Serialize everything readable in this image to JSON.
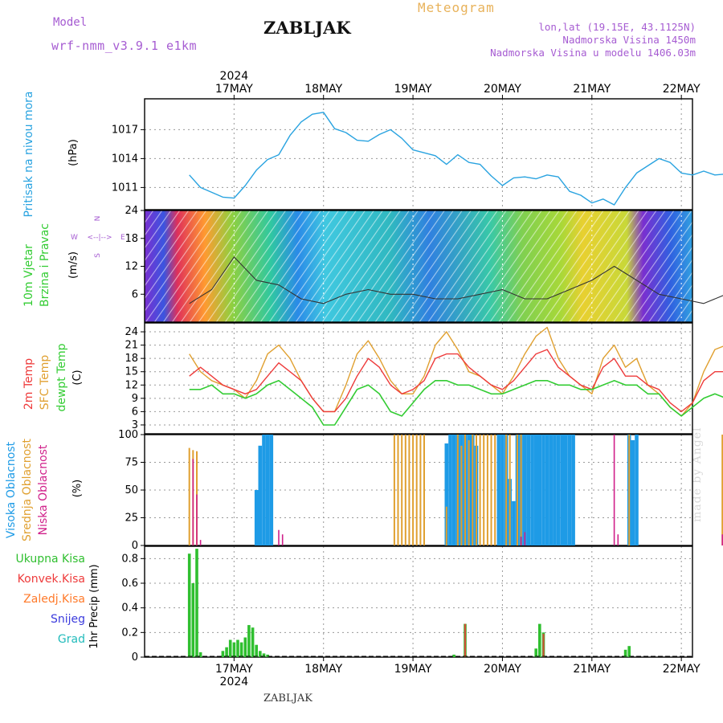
{
  "header": {
    "title": "ZABLJAK",
    "model_label": "Model",
    "model_name": "wrf-nmm_v3.9.1  e1km",
    "meteogram_label": "Meteogram",
    "lonlat": "lon,lat (19.15E, 43.1125N)",
    "elevation": "Nadmorska Visina 1450m",
    "model_elevation": "Nadmorska Visina u modelu 1406.03m"
  },
  "footer": {
    "station": "ZABLJAK",
    "credit": "made by Angel"
  },
  "colors": {
    "pressure": "#29a3e0",
    "temp": "#ee3b3b",
    "sfc_temp": "#e0a030",
    "dewpt": "#33cc33",
    "high_cloud": "#1e9be6",
    "mid_cloud": "#e0a030",
    "low_cloud": "#d0208a",
    "total_precip": "#2fbf2f",
    "conv_precip": "#ee3b3b",
    "frz_precip": "#ff7a2a",
    "snow": "#3b3bdd",
    "hail": "#22bbbb",
    "wind_speed": "#333333",
    "wind_gust": "#ee6666"
  },
  "axis": {
    "year": "2024",
    "days": [
      "17MAY",
      "18MAY",
      "19MAY",
      "20MAY",
      "21MAY",
      "22MAY"
    ]
  },
  "legends": {
    "pressure": [
      "Pritisak na nivou mora"
    ],
    "pressure_unit": "(hPa)",
    "wind": [
      "10m Vjetar",
      "Brzina i Pravac"
    ],
    "wind_unit": "(m/s)",
    "wind_compass": {
      "w": "W",
      "e": "E",
      "n": "N",
      "s": "S"
    },
    "temp": [
      "2m Temp",
      "SFC Temp",
      "dewpt Temp"
    ],
    "temp_unit": "(C)",
    "cloud": [
      "Visoka Oblacnost",
      "Srednja Oblacnost",
      "Niska Oblacnost"
    ],
    "cloud_unit": "(%)",
    "precip": [
      "Ukupna Kisa",
      "Konvek.Kisa",
      "Zaledj.Kisa",
      "Snijeg",
      "Grad"
    ],
    "precip_unit": "1hr Precip (mm)"
  },
  "chart_data": [
    {
      "type": "line",
      "title": "",
      "ylabel": "(hPa)",
      "ylim": [
        1008.7,
        1020.2
      ],
      "yticks": [
        1011,
        1014,
        1017
      ],
      "x_unit": "hours since 16MAY 12UTC",
      "series": [
        {
          "name": "Pritisak na nivou mora",
          "x": [
            0,
            3,
            6,
            9,
            12,
            15,
            18,
            21,
            24,
            27,
            30,
            33,
            36,
            39,
            42,
            45,
            48,
            51,
            54,
            57,
            60,
            63,
            66,
            69,
            72,
            75,
            78,
            81,
            84,
            87,
            90,
            93,
            96,
            99,
            102,
            105,
            108,
            111,
            114,
            117,
            120,
            126,
            129,
            132,
            135,
            138,
            141,
            144,
            147
          ],
          "values": [
            1012.3,
            1011.0,
            1010.5,
            1010.0,
            1009.9,
            1011.2,
            1012.8,
            1013.9,
            1014.4,
            1016.4,
            1017.8,
            1018.6,
            1018.8,
            1017.1,
            1016.7,
            1015.9,
            1015.8,
            1016.5,
            1017.0,
            1016.1,
            1014.9,
            1014.6,
            1014.3,
            1013.4,
            1014.4,
            1013.6,
            1013.4,
            1012.2,
            1011.2,
            1012.0,
            1012.1,
            1011.9,
            1012.3,
            1012.1,
            1010.6,
            1010.2,
            1009.4,
            1009.8,
            1009.2,
            1011.0,
            1012.5,
            1014.0,
            1013.6,
            1012.5,
            1012.3,
            1012.7,
            1012.3,
            1012.4,
            1012.3
          ]
        }
      ]
    },
    {
      "type": "line",
      "title": "",
      "ylabel": "(m/s)",
      "ylim": [
        0,
        24
      ],
      "yticks": [
        6,
        12,
        18,
        24
      ],
      "series": [
        {
          "name": "10m Vjetar",
          "x": [
            0,
            6,
            12,
            18,
            24,
            30,
            36,
            42,
            48,
            54,
            60,
            66,
            72,
            78,
            84,
            90,
            96,
            102,
            108,
            114,
            120,
            126,
            132,
            138,
            144,
            147
          ],
          "values": [
            4,
            7,
            14,
            9,
            8,
            5,
            4,
            6,
            7,
            6,
            6,
            5,
            5,
            6,
            7,
            5,
            5,
            7,
            9,
            12,
            9,
            6,
            5,
            4,
            6,
            7
          ]
        }
      ]
    },
    {
      "type": "line",
      "title": "",
      "ylabel": "(C)",
      "ylim": [
        1,
        26
      ],
      "yticks": [
        3,
        6,
        9,
        12,
        15,
        18,
        21,
        24
      ],
      "series": [
        {
          "name": "2m Temp",
          "x": [
            0,
            3,
            6,
            9,
            12,
            15,
            18,
            21,
            24,
            27,
            30,
            33,
            36,
            39,
            42,
            45,
            48,
            51,
            54,
            57,
            60,
            63,
            66,
            69,
            72,
            75,
            78,
            81,
            84,
            87,
            90,
            93,
            96,
            99,
            102,
            105,
            108,
            111,
            114,
            117,
            120,
            123,
            126,
            129,
            132,
            135,
            138,
            141,
            144,
            147
          ],
          "values": [
            14,
            16,
            14,
            12,
            11,
            10,
            11,
            14,
            17,
            15,
            13,
            9,
            6,
            6,
            9,
            14,
            18,
            16,
            12,
            10,
            11,
            13,
            18,
            19,
            19,
            16,
            14,
            12,
            11,
            13,
            16,
            19,
            20,
            16,
            14,
            12,
            11,
            16,
            18,
            14,
            14,
            12,
            11,
            8,
            6,
            8,
            13,
            15,
            15,
            15
          ]
        },
        {
          "name": "SFC Temp",
          "x": [
            0,
            3,
            6,
            9,
            12,
            15,
            18,
            21,
            24,
            27,
            30,
            33,
            36,
            39,
            42,
            45,
            48,
            51,
            54,
            57,
            60,
            63,
            66,
            69,
            72,
            75,
            78,
            81,
            84,
            87,
            90,
            93,
            96,
            99,
            102,
            105,
            108,
            111,
            114,
            117,
            120,
            123,
            126,
            129,
            132,
            135,
            138,
            141,
            144,
            147
          ],
          "values": [
            19,
            15,
            13,
            12,
            11,
            9,
            13,
            19,
            21,
            18,
            13,
            9,
            6,
            6,
            12,
            19,
            22,
            18,
            13,
            10,
            10,
            14,
            21,
            24,
            20,
            15,
            14,
            12,
            10,
            14,
            19,
            23,
            25,
            18,
            14,
            12,
            10,
            18,
            21,
            16,
            18,
            12,
            10,
            7,
            5,
            8,
            15,
            20,
            21,
            20
          ]
        },
        {
          "name": "dewpt Temp",
          "x": [
            0,
            3,
            6,
            9,
            12,
            15,
            18,
            21,
            24,
            27,
            30,
            33,
            36,
            39,
            42,
            45,
            48,
            51,
            54,
            57,
            60,
            63,
            66,
            69,
            72,
            75,
            78,
            81,
            84,
            87,
            90,
            93,
            96,
            99,
            102,
            105,
            108,
            111,
            114,
            117,
            120,
            123,
            126,
            129,
            132,
            135,
            138,
            141,
            144,
            147
          ],
          "values": [
            11,
            11,
            12,
            10,
            10,
            9,
            10,
            12,
            13,
            11,
            9,
            7,
            3,
            3,
            7,
            11,
            12,
            10,
            6,
            5,
            8,
            11,
            13,
            13,
            12,
            12,
            11,
            10,
            10,
            11,
            12,
            13,
            13,
            12,
            12,
            11,
            11,
            12,
            13,
            12,
            12,
            10,
            10,
            7,
            5,
            7,
            9,
            10,
            9,
            8
          ]
        }
      ]
    },
    {
      "type": "bar",
      "title": "",
      "ylabel": "(%)",
      "ylim": [
        0,
        100
      ],
      "yticks": [
        0,
        25,
        50,
        75,
        100
      ],
      "series": [
        {
          "name": "Visoka Oblacnost",
          "x": [
            18,
            19,
            20,
            21,
            22,
            69,
            70,
            71,
            72,
            73,
            74,
            75,
            76,
            77,
            83,
            84,
            85,
            86,
            87,
            88,
            89,
            90,
            91,
            92,
            93,
            94,
            95,
            96,
            97,
            98,
            99,
            100,
            101,
            102,
            103,
            118,
            119,
            120
          ],
          "values": [
            50,
            90,
            100,
            100,
            100,
            92,
            100,
            100,
            100,
            100,
            100,
            100,
            100,
            90,
            100,
            100,
            100,
            60,
            40,
            100,
            100,
            100,
            100,
            100,
            100,
            100,
            100,
            100,
            100,
            100,
            100,
            100,
            100,
            100,
            100,
            100,
            95,
            100
          ]
        },
        {
          "name": "Srednja Oblacnost",
          "x": [
            0,
            1,
            2,
            55,
            56,
            57,
            58,
            59,
            60,
            61,
            62,
            63,
            69,
            72,
            73,
            74,
            75,
            76,
            77,
            78,
            79,
            80,
            81,
            82,
            85,
            86,
            88,
            89,
            118,
            143
          ],
          "values": [
            88,
            86,
            85,
            100,
            100,
            100,
            100,
            100,
            100,
            100,
            100,
            100,
            35,
            100,
            90,
            100,
            95,
            100,
            100,
            100,
            100,
            100,
            100,
            100,
            100,
            100,
            100,
            100,
            100,
            100
          ]
        },
        {
          "name": "Niska Oblacnost",
          "x": [
            1,
            2,
            3,
            24,
            25,
            89,
            90,
            114,
            115,
            143
          ],
          "values": [
            78,
            46,
            5,
            14,
            10,
            8,
            12,
            100,
            10,
            10
          ]
        }
      ]
    },
    {
      "type": "bar",
      "title": "",
      "ylabel": "1hr Precip (mm)",
      "ylim": [
        0,
        0.9
      ],
      "yticks": [
        0,
        0.2,
        0.4,
        0.6,
        0.8
      ],
      "series": [
        {
          "name": "Ukupna Kisa",
          "x": [
            0,
            1,
            2,
            3,
            9,
            10,
            11,
            12,
            13,
            14,
            15,
            16,
            17,
            18,
            19,
            20,
            21,
            71,
            74,
            93,
            94,
            95,
            117,
            118
          ],
          "values": [
            0.84,
            0.6,
            0.88,
            0.04,
            0.05,
            0.08,
            0.14,
            0.12,
            0.14,
            0.12,
            0.16,
            0.26,
            0.24,
            0.1,
            0.05,
            0.03,
            0.02,
            0.02,
            0.27,
            0.07,
            0.27,
            0.2,
            0.06,
            0.09
          ]
        },
        {
          "name": "Konvek.Kisa",
          "x": [
            74,
            95
          ],
          "values": [
            0.27,
            0.19
          ]
        },
        {
          "name": "Zaledj.Kisa",
          "x": [],
          "values": []
        },
        {
          "name": "Snijeg",
          "x": [],
          "values": []
        },
        {
          "name": "Grad",
          "x": [],
          "values": []
        }
      ]
    }
  ]
}
